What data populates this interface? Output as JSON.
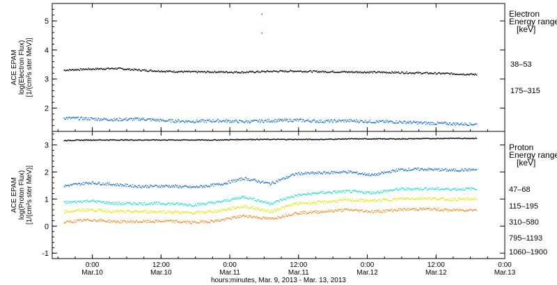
{
  "chart_data": [
    {
      "type": "scatter",
      "panel": "electron",
      "ylabel_lines": [
        "ACE EPAM",
        "log(Electron Flux)",
        "[1/(cm²s ster MeV)]"
      ],
      "ylim": [
        1.2,
        5.6
      ],
      "yticks": [
        "2",
        "3",
        "4",
        "5"
      ],
      "legend_title": [
        "Electron",
        "Energy ranges",
        "[keV]"
      ],
      "series": [
        {
          "name": "38–53",
          "color": "#000000",
          "x_start": "Mar. 9, 2013 19:00",
          "x_end": "Mar. 12, 2013 19:00",
          "values": [
            3.32,
            3.36,
            3.38,
            3.32,
            3.28,
            3.26,
            3.26,
            3.25,
            3.28,
            3.29,
            3.27,
            3.26,
            3.25,
            3.24,
            3.22,
            3.2,
            3.17
          ]
        },
        {
          "name": "175–315",
          "color": "#0a6fd6",
          "x_start": "Mar. 9, 2013 19:00",
          "x_end": "Mar. 12, 2013 19:00",
          "values": [
            1.68,
            1.65,
            1.62,
            1.64,
            1.58,
            1.56,
            1.58,
            1.55,
            1.58,
            1.6,
            1.56,
            1.58,
            1.55,
            1.54,
            1.5,
            1.48,
            1.46
          ]
        }
      ],
      "outliers": [
        {
          "x": "Mar. 11, 2013 05:30",
          "y": 5.25,
          "color": "#0a6fd6"
        },
        {
          "x": "Mar. 11, 2013 05:30",
          "y": 4.6,
          "color": "#0a6fd6"
        }
      ]
    },
    {
      "type": "scatter",
      "panel": "proton",
      "ylabel_lines": [
        "ACE EPAM",
        "log(Proton Flux)",
        "[1/(cm²s ster MeV)]"
      ],
      "ylim": [
        -1.2,
        3.5
      ],
      "yticks": [
        "-1",
        "0",
        "1",
        "2",
        "3"
      ],
      "legend_title": [
        "Proton",
        "Energy ranges",
        "[keV]"
      ],
      "series": [
        {
          "name": "47–68",
          "color": "#000000",
          "x_start": "Mar. 9, 2013 19:00",
          "x_end": "Mar. 12, 2013 19:00",
          "values": [
            3.18,
            3.2,
            3.2,
            3.2,
            3.2,
            3.2,
            3.2,
            3.22,
            3.22,
            3.22,
            3.22,
            3.24,
            3.24,
            3.24,
            3.25,
            3.26,
            3.26
          ]
        },
        {
          "name": "115–195",
          "color": "#1a6fd0",
          "x_start": "Mar. 9, 2013 19:00",
          "x_end": "Mar. 12, 2013 19:00",
          "values": [
            1.5,
            1.62,
            1.55,
            1.48,
            1.5,
            1.45,
            1.55,
            1.78,
            1.58,
            1.95,
            1.98,
            2.02,
            1.9,
            2.1,
            2.12,
            2.08,
            2.1
          ]
        },
        {
          "name": "310–580",
          "color": "#19e0d2",
          "x_start": "Mar. 9, 2013 19:00",
          "x_end": "Mar. 12, 2013 19:00",
          "values": [
            0.88,
            0.95,
            0.85,
            0.85,
            0.85,
            0.8,
            0.9,
            1.1,
            0.85,
            1.15,
            1.25,
            1.3,
            1.25,
            1.38,
            1.4,
            1.38,
            1.4
          ]
        },
        {
          "name": "795–1193",
          "color": "#e6e600",
          "x_start": "Mar. 9, 2013 19:00",
          "x_end": "Mar. 12, 2013 19:00",
          "values": [
            0.55,
            0.62,
            0.55,
            0.55,
            0.55,
            0.5,
            0.58,
            0.75,
            0.55,
            0.85,
            0.9,
            0.98,
            0.95,
            1.02,
            1.05,
            1.0,
            1.02
          ]
        },
        {
          "name": "1060–1900",
          "color": "#f08a1e",
          "x_start": "Mar. 9, 2013 19:00",
          "x_end": "Mar. 12, 2013 19:00",
          "values": [
            0.15,
            0.25,
            0.18,
            0.18,
            0.2,
            0.15,
            0.22,
            0.4,
            0.28,
            0.5,
            0.55,
            0.62,
            0.55,
            0.62,
            0.65,
            0.6,
            0.62
          ]
        }
      ]
    }
  ],
  "x_axis": {
    "range": [
      "Mar. 9, 2013 17:00",
      "Mar. 13, 2013 00:00"
    ],
    "ticks": [
      {
        "time": "0:00",
        "date": "Mar.10"
      },
      {
        "time": "12:00",
        "date": "Mar.10"
      },
      {
        "time": "0:00",
        "date": "Mar.11"
      },
      {
        "time": "12:00",
        "date": "Mar.11"
      },
      {
        "time": "0:00",
        "date": "Mar.12"
      },
      {
        "time": "12:00",
        "date": "Mar.12"
      },
      {
        "time": "0:00",
        "date": "Mar.13"
      }
    ],
    "label": "hours:minutes, Mar.  9, 2013 - Mar. 13, 2013"
  }
}
